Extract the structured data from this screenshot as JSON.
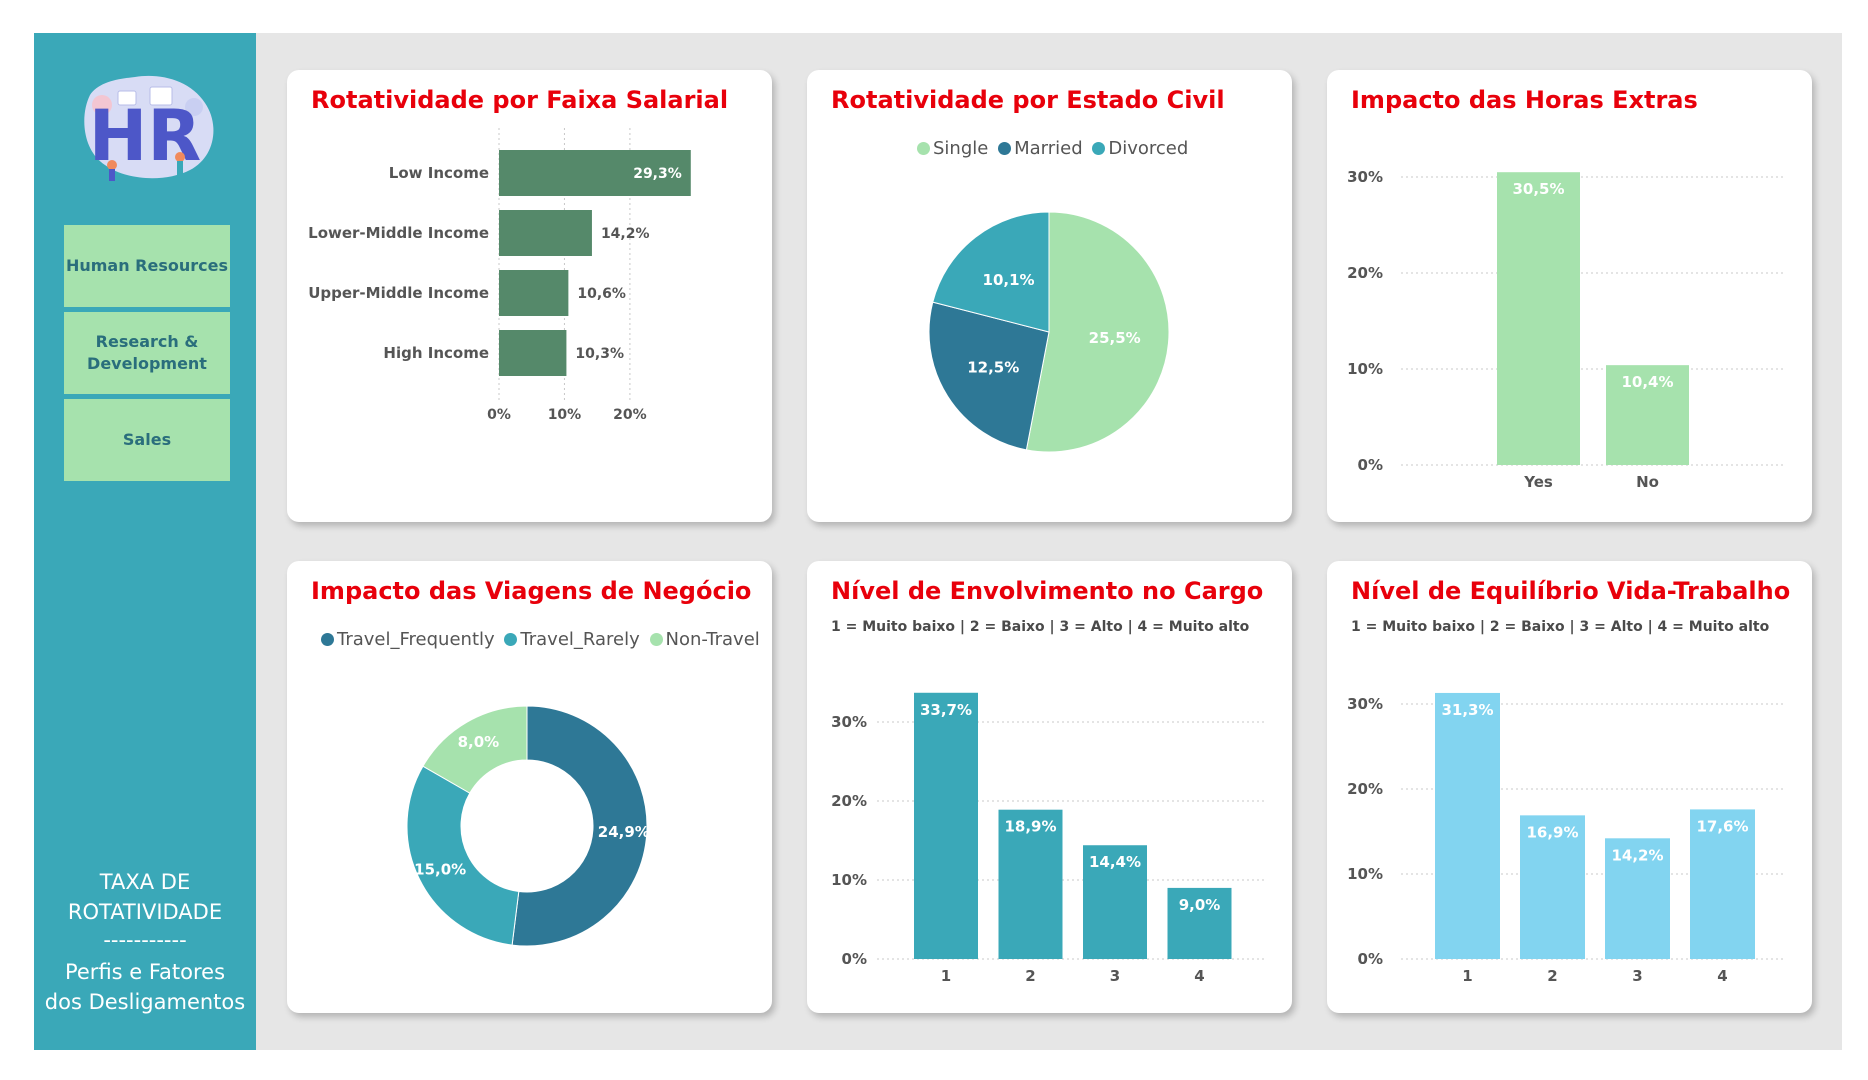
{
  "colors": {
    "sidebar": "#3aa8b8",
    "nav_button": "#a6e2ad",
    "title_red": "#e8000b",
    "salary_bar": "#55896a",
    "light_green": "#a6e2ad",
    "dark_teal": "#2e7896",
    "teal": "#3aa8b8",
    "light_blue": "#82d4f0"
  },
  "sidebar": {
    "logo_icon": "hr-logo",
    "nav": [
      {
        "label": "Human Resources"
      },
      {
        "label": "Research &\nDevelopment"
      },
      {
        "label": "Sales"
      }
    ],
    "title_line1": "TAXA DE",
    "title_line2": "ROTATIVIDADE",
    "separator": "-----------",
    "subtitle_line1": "Perfis e Fatores",
    "subtitle_line2": "dos Desligamentos"
  },
  "cards": {
    "salary": {
      "title": "Rotatividade por Faixa Salarial"
    },
    "marital": {
      "title": "Rotatividade por Estado Civil"
    },
    "overtime": {
      "title": "Impacto das Horas Extras"
    },
    "travel": {
      "title": "Impacto das Viagens de Negócio"
    },
    "involvement": {
      "title": "Nível de Envolvimento no Cargo",
      "subtitle": "1 = Muito baixo | 2 = Baixo | 3 = Alto | 4 = Muito alto"
    },
    "balance": {
      "title": "Nível de Equilíbrio Vida-Trabalho",
      "subtitle": "1 = Muito baixo | 2 = Baixo | 3 = Alto | 4 = Muito alto"
    }
  },
  "chart_data": [
    {
      "type": "bar",
      "orientation": "horizontal",
      "title": "Rotatividade por Faixa Salarial",
      "categories": [
        "Low Income",
        "Lower-Middle Income",
        "Upper-Middle Income",
        "High Income"
      ],
      "values": [
        29.3,
        14.2,
        10.6,
        10.3
      ],
      "value_labels": [
        "29,3%",
        "14,2%",
        "10,6%",
        "10,3%"
      ],
      "x_ticks": [
        "0%",
        "10%",
        "20%"
      ],
      "xlim": [
        0,
        30
      ],
      "grid": true,
      "color": "#55896a"
    },
    {
      "type": "pie",
      "title": "Rotatividade por Estado Civil",
      "legend": [
        "Single",
        "Married",
        "Divorced"
      ],
      "legend_position": "top",
      "slices": [
        {
          "name": "Single",
          "value": 25.5,
          "label": "25,5%",
          "color": "#a6e2ad"
        },
        {
          "name": "Married",
          "value": 12.5,
          "label": "12,5%",
          "color": "#2e7896"
        },
        {
          "name": "Divorced",
          "value": 10.1,
          "label": "10,1%",
          "color": "#3aa8b8"
        }
      ]
    },
    {
      "type": "bar",
      "title": "Impacto das Horas Extras",
      "categories": [
        "Yes",
        "No"
      ],
      "values": [
        30.5,
        10.4
      ],
      "value_labels": [
        "30,5%",
        "10,4%"
      ],
      "y_ticks": [
        "0%",
        "10%",
        "20%",
        "30%"
      ],
      "ylim": [
        0,
        30
      ],
      "grid": true,
      "color": "#a6e2ad"
    },
    {
      "type": "pie",
      "donut": true,
      "title": "Impacto das Viagens de Negócio",
      "legend": [
        "Travel_Frequently",
        "Travel_Rarely",
        "Non-Travel"
      ],
      "legend_position": "top",
      "slices": [
        {
          "name": "Travel_Frequently",
          "value": 24.9,
          "label": "24,9%",
          "color": "#2e7896"
        },
        {
          "name": "Travel_Rarely",
          "value": 15.0,
          "label": "15,0%",
          "color": "#3aa8b8"
        },
        {
          "name": "Non-Travel",
          "value": 8.0,
          "label": "8,0%",
          "color": "#a6e2ad"
        }
      ]
    },
    {
      "type": "bar",
      "title": "Nível de Envolvimento no Cargo",
      "subtitle": "1 = Muito baixo | 2 = Baixo | 3 = Alto | 4 = Muito alto",
      "categories": [
        "1",
        "2",
        "3",
        "4"
      ],
      "values": [
        33.7,
        18.9,
        14.4,
        9.0
      ],
      "value_labels": [
        "33,7%",
        "18,9%",
        "14,4%",
        "9,0%"
      ],
      "y_ticks": [
        "0%",
        "10%",
        "20%",
        "30%"
      ],
      "ylim": [
        0,
        30
      ],
      "grid": true,
      "color": "#3aa8b8"
    },
    {
      "type": "bar",
      "title": "Nível de Equilíbrio Vida-Trabalho",
      "subtitle": "1 = Muito baixo | 2 = Baixo | 3 = Alto | 4 = Muito alto",
      "categories": [
        "1",
        "2",
        "3",
        "4"
      ],
      "values": [
        31.3,
        16.9,
        14.2,
        17.6
      ],
      "value_labels": [
        "31,3%",
        "16,9%",
        "14,2%",
        "17,6%"
      ],
      "y_ticks": [
        "0%",
        "10%",
        "20%",
        "30%"
      ],
      "ylim": [
        0,
        30
      ],
      "grid": true,
      "color": "#82d4f0"
    }
  ]
}
